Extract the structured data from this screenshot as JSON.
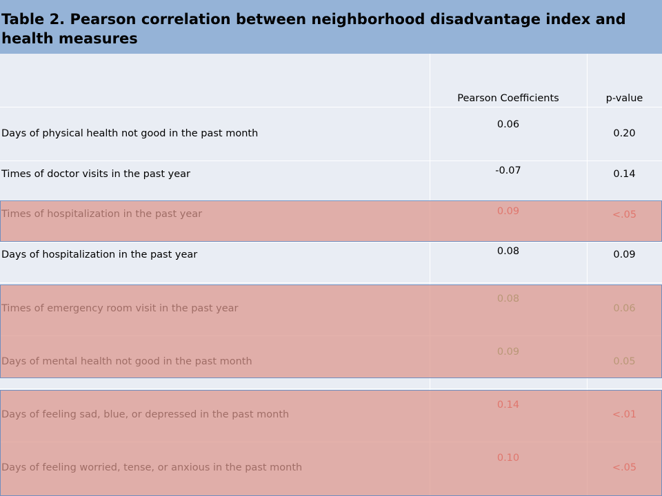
{
  "title": "Table 2. Pearson correlation between neighborhood disadvantage index and health measures",
  "columns": [
    "",
    "Pearson Coefficients",
    "p-value"
  ],
  "rows": [
    {
      "measure": "Days of physical health not good in the past month",
      "coef": "0.06",
      "p": "0.20"
    },
    {
      "measure": "Times of doctor visits in the past year",
      "coef": "-0.07",
      "p": "0.14"
    },
    {
      "measure": "Times of hospitalization in the past year",
      "coef": "0.09",
      "p": "<.05"
    },
    {
      "measure": "Days of hospitalization in the past year",
      "coef": "0.08",
      "p": "0.09"
    },
    {
      "measure": "Times of emergency room visit in the past year",
      "coef": "0.08",
      "p": "0.06"
    },
    {
      "measure": "Days of mental health not good in the past month",
      "coef": "0.09",
      "p": "0.05"
    },
    {
      "measure": "Days of feeling sad, blue, or depressed in the past month",
      "coef": "0.14",
      "p": "<.01"
    },
    {
      "measure": "Days of feeling worried, tense, or anxious in the past month",
      "coef": "0.10",
      "p": "<.05"
    }
  ],
  "colors": {
    "header_bg": "#95b3d7",
    "row_bg": "#e9edf4",
    "highlight": "#dd968c",
    "significant_text": "#e8261d",
    "marginal_text": "#5e9a3f"
  }
}
